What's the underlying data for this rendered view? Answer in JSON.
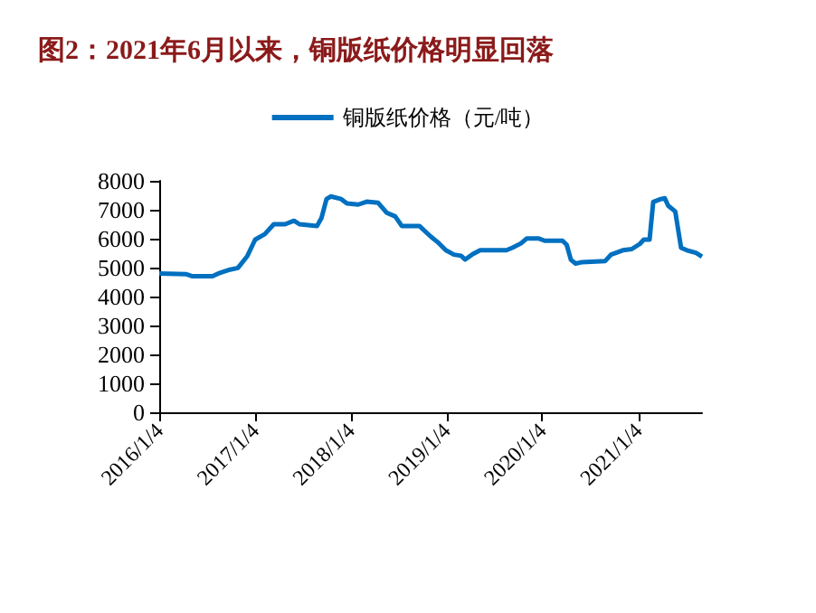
{
  "chart_data": {
    "type": "line",
    "title": "图2：2021年6月以来，铜版纸价格明显回落",
    "x": [
      "2016-01-04",
      "2016-04-17",
      "2016-05-10",
      "2016-07-25",
      "2016-08-17",
      "2016-09-30",
      "2016-10-30",
      "2016-12-05",
      "2017-01-04",
      "2017-02-10",
      "2017-03-16",
      "2017-04-28",
      "2017-06-01",
      "2017-06-22",
      "2017-08-28",
      "2017-09-14",
      "2017-10-03",
      "2017-10-20",
      "2017-11-28",
      "2017-12-20",
      "2018-02-01",
      "2018-03-05",
      "2018-04-18",
      "2018-05-20",
      "2018-06-22",
      "2018-07-17",
      "2018-09-22",
      "2018-11-05",
      "2018-12-01",
      "2019-01-01",
      "2019-02-01",
      "2019-02-28",
      "2019-03-16",
      "2019-04-14",
      "2019-05-12",
      "2019-08-20",
      "2019-09-12",
      "2019-10-15",
      "2019-11-06",
      "2019-12-20",
      "2020-01-13",
      "2020-03-21",
      "2020-04-06",
      "2020-04-22",
      "2020-05-10",
      "2020-06-04",
      "2020-08-31",
      "2020-09-22",
      "2020-11-06",
      "2020-12-10",
      "2021-01-10",
      "2021-01-25",
      "2021-02-16",
      "2021-03-02",
      "2021-03-31",
      "2021-04-15",
      "2021-04-28",
      "2021-05-25",
      "2021-06-16",
      "2021-07-08",
      "2021-08-12",
      "2021-09-04"
    ],
    "series": [
      {
        "name": "铜版纸价格（元/吨）",
        "color": "#0070c0",
        "values": [
          4800,
          4770,
          4700,
          4700,
          4800,
          4930,
          4990,
          5400,
          5970,
          6160,
          6500,
          6500,
          6620,
          6500,
          6440,
          6720,
          7370,
          7460,
          7370,
          7220,
          7180,
          7280,
          7240,
          6900,
          6770,
          6440,
          6440,
          6070,
          5880,
          5600,
          5450,
          5410,
          5280,
          5470,
          5600,
          5600,
          5690,
          5840,
          6010,
          6010,
          5930,
          5930,
          5790,
          5270,
          5140,
          5190,
          5230,
          5450,
          5600,
          5640,
          5820,
          5970,
          5970,
          7270,
          7370,
          7400,
          7140,
          6940,
          5690,
          5600,
          5510,
          5380
        ]
      }
    ],
    "xlim": [
      "2016-01-04",
      "2021-09-04"
    ],
    "xticks": [
      {
        "value": "2016-01-04",
        "label": "2016/1/4"
      },
      {
        "value": "2017-01-04",
        "label": "2017/1/4"
      },
      {
        "value": "2018-01-04",
        "label": "2018/1/4"
      },
      {
        "value": "2019-01-04",
        "label": "2019/1/4"
      },
      {
        "value": "2020-01-04",
        "label": "2020/1/4"
      },
      {
        "value": "2021-01-04",
        "label": "2021/1/4"
      }
    ],
    "ylim": [
      0,
      8000
    ],
    "yticks": [
      0,
      1000,
      2000,
      3000,
      4000,
      5000,
      6000,
      7000,
      8000
    ],
    "grid": false,
    "legend": "top",
    "marker": "none",
    "line_style": "solid"
  }
}
